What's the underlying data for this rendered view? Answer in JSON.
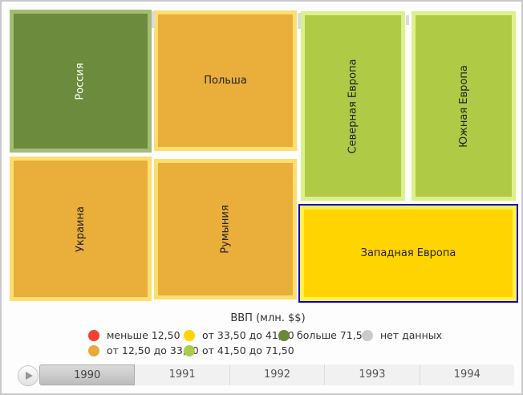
{
  "treemap": {
    "tiles": [
      {
        "id": "russia",
        "label": "Россия",
        "fill": "#6C8B3D",
        "border": "#A3BE74",
        "text_color": "#ffffff",
        "orientation": "vertical",
        "selected": false
      },
      {
        "id": "poland",
        "label": "Польша",
        "fill": "#EAAE3B",
        "border": "#FCDF6E",
        "text_color": "#222222",
        "orientation": "horizontal",
        "selected": false
      },
      {
        "id": "ukraine",
        "label": "Украина",
        "fill": "#EAAE3B",
        "border": "#FCDF6E",
        "text_color": "#222222",
        "orientation": "vertical",
        "selected": false
      },
      {
        "id": "romania",
        "label": "Румыния",
        "fill": "#EAAE3B",
        "border": "#FCDF6E",
        "text_color": "#222222",
        "orientation": "vertical",
        "selected": false
      },
      {
        "id": "north",
        "label": "Северная Европа",
        "fill": "#AFCB45",
        "border": "#DBF18C",
        "text_color": "#222222",
        "orientation": "vertical",
        "selected": false
      },
      {
        "id": "south",
        "label": "Южная Европа",
        "fill": "#AFCB45",
        "border": "#DBF18C",
        "text_color": "#222222",
        "orientation": "vertical",
        "selected": false
      },
      {
        "id": "west",
        "label": "Западная Европа",
        "fill": "#FFD400",
        "border": "#FFF04E",
        "text_color": "#222222",
        "orientation": "horizontal",
        "selected": true,
        "selection_outline": "#0101CC"
      }
    ]
  },
  "legend": {
    "title": "ВВП (млн. $$)",
    "items": [
      {
        "label": "меньше 12,50",
        "color": "#F5402F"
      },
      {
        "label": "от 12,50 до 33,50",
        "color": "#E9A93C"
      },
      {
        "label": "от 33,50 до 41,50",
        "color": "#FFD400"
      },
      {
        "label": "от 41,50 до 71,50",
        "color": "#ABCA4D"
      },
      {
        "label": "больше 71,50",
        "color": "#6B873A"
      },
      {
        "label": "нет данных",
        "color": "#CBCBCB"
      }
    ]
  },
  "timeline": {
    "years": [
      {
        "label": "1990",
        "selected": true
      },
      {
        "label": "1991",
        "selected": false
      },
      {
        "label": "1992",
        "selected": false
      },
      {
        "label": "1993",
        "selected": false
      },
      {
        "label": "1994",
        "selected": false
      }
    ]
  },
  "chart_data": {
    "type": "treemap",
    "legend_title": "ВВП (млн. $$)",
    "selected_year": "1990",
    "nodes": [
      {
        "name": "Россия",
        "value_bin": "больше 71,50",
        "selected": false
      },
      {
        "name": "Польша",
        "value_bin": "от 12,50 до 33,50",
        "selected": false
      },
      {
        "name": "Украина",
        "value_bin": "от 12,50 до 33,50",
        "selected": false
      },
      {
        "name": "Румыния",
        "value_bin": "от 12,50 до 33,50",
        "selected": false
      },
      {
        "name": "Северная Европа",
        "value_bin": "от 41,50 до 71,50",
        "selected": false
      },
      {
        "name": "Южная Европа",
        "value_bin": "от 41,50 до 71,50",
        "selected": false
      },
      {
        "name": "Западная Европа",
        "value_bin": "от 33,50 до 41,50",
        "selected": true
      }
    ],
    "bins": [
      {
        "label": "меньше 12,50",
        "color": "#F5402F"
      },
      {
        "label": "от 12,50 до 33,50",
        "color": "#E9A93C"
      },
      {
        "label": "от 33,50 до 41,50",
        "color": "#FFD400"
      },
      {
        "label": "от 41,50 до 71,50",
        "color": "#ABCA4D"
      },
      {
        "label": "больше 71,50",
        "color": "#6B873A"
      },
      {
        "label": "нет данных",
        "color": "#CBCBCB"
      }
    ],
    "timeline_years": [
      "1990",
      "1991",
      "1992",
      "1993",
      "1994"
    ]
  }
}
